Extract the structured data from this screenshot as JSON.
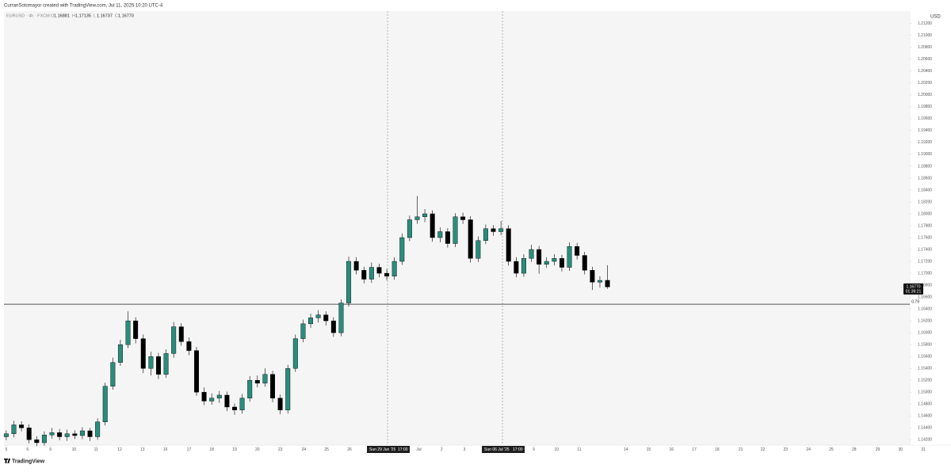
{
  "chart_data": {
    "type": "candlestick",
    "attribution": "CurranSotomayor created with TradingView.com, Jul 11, 2025 10:20 UTC-4",
    "title": "EURUSD · 4h · FXCM",
    "ohlc_header": [
      {
        "name": "O",
        "label": "1.16881"
      },
      {
        "name": "H",
        "label": "1.17135"
      },
      {
        "name": "L",
        "label": "1.16737"
      },
      {
        "name": "C",
        "label": "1.16770"
      }
    ],
    "currency": "USD",
    "brand": "TradingView",
    "up_color": "#2a8c7c",
    "down_color": "#000000",
    "x": [
      0,
      1,
      2,
      3,
      4,
      5,
      6,
      7,
      8,
      9,
      10,
      11,
      12,
      13,
      14,
      15,
      16,
      17,
      18,
      19,
      20,
      21,
      22,
      23,
      24,
      25,
      26,
      27,
      28,
      29,
      30,
      31,
      32,
      33,
      34,
      35,
      36,
      37,
      38,
      39,
      40,
      41,
      42,
      43,
      44,
      45,
      46,
      47,
      48,
      49,
      50,
      51,
      52,
      53,
      54,
      55,
      56,
      57,
      58,
      59,
      60,
      61,
      62,
      63,
      64,
      65,
      66,
      67,
      68,
      69,
      70,
      71,
      72,
      73,
      74,
      75,
      76,
      77,
      78,
      79
    ],
    "open": [
      1.1425,
      1.143,
      1.1445,
      1.144,
      1.142,
      1.1415,
      1.1428,
      1.1432,
      1.1425,
      1.143,
      1.1427,
      1.1435,
      1.1425,
      1.145,
      1.151,
      1.155,
      1.158,
      1.162,
      1.159,
      1.154,
      1.156,
      1.153,
      1.1565,
      1.161,
      1.1585,
      1.157,
      1.15,
      1.1485,
      1.149,
      1.1495,
      1.1475,
      1.147,
      1.149,
      1.152,
      1.1515,
      1.153,
      1.149,
      1.147,
      1.154,
      1.159,
      1.1615,
      1.1625,
      1.163,
      1.162,
      1.16,
      1.165,
      1.172,
      1.1705,
      1.169,
      1.171,
      1.17,
      1.1695,
      1.172,
      1.176,
      1.179,
      1.1795,
      1.18,
      1.176,
      1.177,
      1.175,
      1.1795,
      1.179,
      1.1725,
      1.1755,
      1.1775,
      1.177,
      1.1775,
      1.172,
      1.17,
      1.1725,
      1.174,
      1.1715,
      1.172,
      1.1725,
      1.171,
      1.1745,
      1.173,
      1.1705,
      1.1685,
      1.16881
    ],
    "high": [
      1.1436,
      1.1452,
      1.1451,
      1.1446,
      1.1426,
      1.1434,
      1.144,
      1.1438,
      1.1437,
      1.1436,
      1.1441,
      1.144,
      1.1456,
      1.1516,
      1.1558,
      1.1588,
      1.1636,
      1.1626,
      1.1597,
      1.1568,
      1.1566,
      1.1572,
      1.1618,
      1.1616,
      1.1592,
      1.1576,
      1.1508,
      1.1498,
      1.1502,
      1.1501,
      1.1481,
      1.1497,
      1.1527,
      1.1528,
      1.154,
      1.1536,
      1.1496,
      1.1546,
      1.1597,
      1.1622,
      1.1632,
      1.1638,
      1.1636,
      1.1626,
      1.1656,
      1.1728,
      1.1727,
      1.1711,
      1.1718,
      1.1716,
      1.1707,
      1.1727,
      1.1767,
      1.1797,
      1.183,
      1.1808,
      1.1806,
      1.1777,
      1.1776,
      1.1801,
      1.1802,
      1.1796,
      1.1762,
      1.1782,
      1.1781,
      1.1788,
      1.1781,
      1.1727,
      1.1732,
      1.1748,
      1.1746,
      1.1727,
      1.1732,
      1.1731,
      1.1752,
      1.1751,
      1.1736,
      1.1711,
      1.1695,
      1.17135
    ],
    "low": [
      1.1419,
      1.1424,
      1.1434,
      1.1414,
      1.1409,
      1.141,
      1.1422,
      1.1419,
      1.1418,
      1.1421,
      1.1421,
      1.1418,
      1.142,
      1.1444,
      1.1504,
      1.1544,
      1.1574,
      1.1582,
      1.1532,
      1.1528,
      1.1522,
      1.1524,
      1.1558,
      1.1578,
      1.1562,
      1.1494,
      1.1478,
      1.1479,
      1.1482,
      1.1468,
      1.1462,
      1.1464,
      1.1484,
      1.1508,
      1.1509,
      1.1483,
      1.1463,
      1.1464,
      1.1534,
      1.1584,
      1.1608,
      1.1617,
      1.1612,
      1.1593,
      1.1594,
      1.1644,
      1.1698,
      1.1683,
      1.1684,
      1.1693,
      1.1688,
      1.1689,
      1.1714,
      1.1754,
      1.1783,
      1.1786,
      1.1753,
      1.1752,
      1.1743,
      1.1744,
      1.1783,
      1.1718,
      1.1719,
      1.1749,
      1.1763,
      1.1764,
      1.1713,
      1.1693,
      1.1694,
      1.1719,
      1.1699,
      1.1709,
      1.1713,
      1.1703,
      1.1704,
      1.1723,
      1.1698,
      1.1672,
      1.1676,
      1.16737
    ],
    "close": [
      1.143,
      1.1445,
      1.144,
      1.142,
      1.1415,
      1.1428,
      1.1432,
      1.1425,
      1.143,
      1.1427,
      1.1435,
      1.1425,
      1.145,
      1.151,
      1.155,
      1.158,
      1.162,
      1.159,
      1.154,
      1.156,
      1.153,
      1.1565,
      1.161,
      1.1585,
      1.157,
      1.15,
      1.1485,
      1.149,
      1.1495,
      1.1475,
      1.147,
      1.149,
      1.152,
      1.1515,
      1.153,
      1.149,
      1.147,
      1.154,
      1.159,
      1.1615,
      1.1625,
      1.163,
      1.162,
      1.16,
      1.165,
      1.172,
      1.1705,
      1.169,
      1.171,
      1.17,
      1.1695,
      1.172,
      1.176,
      1.179,
      1.1795,
      1.18,
      1.176,
      1.177,
      1.175,
      1.1795,
      1.179,
      1.1725,
      1.1755,
      1.1775,
      1.177,
      1.1775,
      1.172,
      1.17,
      1.1725,
      1.174,
      1.1715,
      1.172,
      1.1725,
      1.171,
      1.1745,
      1.173,
      1.1705,
      1.1685,
      1.1688,
      1.1677
    ],
    "last_price": {
      "value": 1.1677,
      "label": "1.16770",
      "countdown": "01:39:21"
    },
    "hlines": [
      {
        "value": 1.1648,
        "label": "0.79"
      }
    ],
    "vlines": [
      {
        "x": 50.1,
        "label": "Sun 29 Jun '25",
        "time": "17:00"
      },
      {
        "x": 65.2,
        "label": "Sun 06 Jul '25",
        "time": "17:00"
      }
    ],
    "xlim": [
      -0.3,
      120.8
    ],
    "ylim": [
      1.1411,
      1.2141
    ],
    "xticks": [
      {
        "value": 0,
        "label": "5"
      },
      {
        "value": 2.8,
        "label": "6"
      },
      {
        "value": 5.8,
        "label": "9"
      },
      {
        "value": 8.9,
        "label": "10"
      },
      {
        "value": 11.8,
        "label": "11"
      },
      {
        "value": 14.9,
        "label": "12"
      },
      {
        "value": 17.9,
        "label": "13"
      },
      {
        "value": 20.9,
        "label": "16"
      },
      {
        "value": 24.0,
        "label": "17"
      },
      {
        "value": 27.0,
        "label": "18"
      },
      {
        "value": 30.0,
        "label": "19"
      },
      {
        "value": 33.0,
        "label": "20"
      },
      {
        "value": 36.0,
        "label": "23"
      },
      {
        "value": 39.1,
        "label": "24"
      },
      {
        "value": 42.1,
        "label": "25"
      },
      {
        "value": 45.1,
        "label": "26"
      },
      {
        "value": 54.2,
        "label": "Jul"
      },
      {
        "value": 57.2,
        "label": "2"
      },
      {
        "value": 60.2,
        "label": "3"
      },
      {
        "value": 69.3,
        "label": "9"
      },
      {
        "value": 72.3,
        "label": "10"
      },
      {
        "value": 75.3,
        "label": "11"
      },
      {
        "value": 81.4,
        "label": "14"
      },
      {
        "value": 84.4,
        "label": "15"
      },
      {
        "value": 87.4,
        "label": "16"
      },
      {
        "value": 90.4,
        "label": "17"
      },
      {
        "value": 93.4,
        "label": "18"
      },
      {
        "value": 96.5,
        "label": "21"
      },
      {
        "value": 99.4,
        "label": "22"
      },
      {
        "value": 102.4,
        "label": "23"
      },
      {
        "value": 105.4,
        "label": "24"
      },
      {
        "value": 108.4,
        "label": "25"
      },
      {
        "value": 111.4,
        "label": "28"
      },
      {
        "value": 114.5,
        "label": "29"
      },
      {
        "value": 117.5,
        "label": "30"
      },
      {
        "value": 120.5,
        "label": "31"
      }
    ],
    "yticks": [
      {
        "value": 1.142,
        "label": "1.14200"
      },
      {
        "value": 1.144,
        "label": "1.14400"
      },
      {
        "value": 1.146,
        "label": "1.14600"
      },
      {
        "value": 1.148,
        "label": "1.14800"
      },
      {
        "value": 1.15,
        "label": "1.15000"
      },
      {
        "value": 1.152,
        "label": "1.15200"
      },
      {
        "value": 1.154,
        "label": "1.15400"
      },
      {
        "value": 1.156,
        "label": "1.15600"
      },
      {
        "value": 1.158,
        "label": "1.15800"
      },
      {
        "value": 1.16,
        "label": "1.16000"
      },
      {
        "value": 1.162,
        "label": "1.16200"
      },
      {
        "value": 1.164,
        "label": "1.16400"
      },
      {
        "value": 1.166,
        "label": "1.16600"
      },
      {
        "value": 1.168,
        "label": "1.16800"
      },
      {
        "value": 1.17,
        "label": "1.17000"
      },
      {
        "value": 1.172,
        "label": "1.17200"
      },
      {
        "value": 1.174,
        "label": "1.17400"
      },
      {
        "value": 1.176,
        "label": "1.17600"
      },
      {
        "value": 1.178,
        "label": "1.17800"
      },
      {
        "value": 1.18,
        "label": "1.18000"
      },
      {
        "value": 1.182,
        "label": "1.18200"
      },
      {
        "value": 1.184,
        "label": "1.18400"
      },
      {
        "value": 1.186,
        "label": "1.18600"
      },
      {
        "value": 1.188,
        "label": "1.18800"
      },
      {
        "value": 1.19,
        "label": "1.19000"
      },
      {
        "value": 1.192,
        "label": "1.19200"
      },
      {
        "value": 1.194,
        "label": "1.19400"
      },
      {
        "value": 1.196,
        "label": "1.19600"
      },
      {
        "value": 1.198,
        "label": "1.19800"
      },
      {
        "value": 1.2,
        "label": "1.20000"
      },
      {
        "value": 1.202,
        "label": "1.20200"
      },
      {
        "value": 1.204,
        "label": "1.20400"
      },
      {
        "value": 1.206,
        "label": "1.20600"
      },
      {
        "value": 1.208,
        "label": "1.20800"
      },
      {
        "value": 1.21,
        "label": "1.21000"
      },
      {
        "value": 1.212,
        "label": "1.21200"
      }
    ]
  }
}
